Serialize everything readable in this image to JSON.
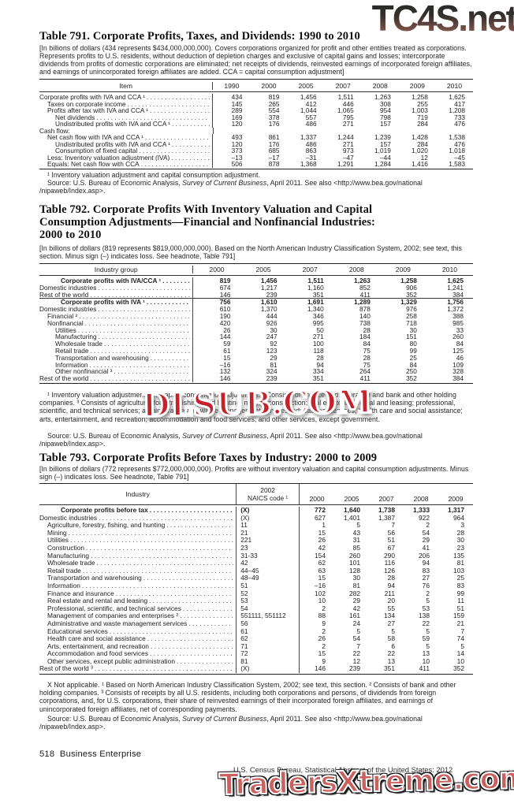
{
  "watermarks": {
    "top": "TC4S.net",
    "middle": "DLSUB.COM",
    "bottom": "TradersXtreme.com"
  },
  "footer": {
    "page_number": "518",
    "section": "Business Enterprise",
    "census_line": "U.S. Census Bureau, Statistical Abstract of the United States: 2012"
  },
  "source_shared": {
    "pre": "Source: U.S. Bureau of Economic Analysis, ",
    "italic": "Survey of Current Business",
    "post": ", April 2011. See also <http://www.bea.gov/national",
    "line2": "/nipaweb/Index.asp>."
  },
  "table791": {
    "title": "Table 791. Corporate Profits, Taxes, and Dividends: 1990 to 2010",
    "headnote": "[In billions of dollars (434 represents $434,000,000,000). Covers corporations organized for profit and other entities treated as corporations. Represents profits to U.S. residents, without deduction of depletion charges and exclusive of capital gains and losses; intercorporate dividends from profits of domestic corporations are eliminated; net receipts of dividends, reinvested earnings of incorporated foreign affiliates, and earnings of unincorporated foreign affiliates are added. CCA = capital consumption adjustment]",
    "col_header": "Item",
    "years": [
      "1990",
      "2000",
      "2005",
      "2007",
      "2008",
      "2009",
      "2010"
    ],
    "rows": [
      {
        "label": "Corporate profits with IVA and CCA ¹",
        "indent": 0,
        "values": [
          "434",
          "819",
          "1,456",
          "1,511",
          "1,263",
          "1,258",
          "1,625"
        ]
      },
      {
        "label": "Taxes on corporate income",
        "indent": 1,
        "values": [
          "145",
          "265",
          "412",
          "446",
          "308",
          "255",
          "417"
        ]
      },
      {
        "label": "Profits after tax with IVA and CCA ¹",
        "indent": 1,
        "values": [
          "289",
          "554",
          "1,044",
          "1,065",
          "954",
          "1,003",
          "1,208"
        ]
      },
      {
        "label": "Net dividends",
        "indent": 2,
        "values": [
          "169",
          "378",
          "557",
          "795",
          "798",
          "719",
          "733"
        ]
      },
      {
        "label": "Undistributed profits with IVA and CCA ¹",
        "indent": 2,
        "values": [
          "120",
          "176",
          "486",
          "271",
          "157",
          "284",
          "476"
        ]
      },
      {
        "label": "Cash flow:",
        "indent": 0,
        "nodots": true,
        "values": []
      },
      {
        "label": "Net cash flow with IVA and CCA ¹",
        "indent": 1,
        "values": [
          "493",
          "861",
          "1,337",
          "1,244",
          "1,239",
          "1,428",
          "1,538"
        ]
      },
      {
        "label": "Undistributed profits with IVA and CCA ¹",
        "indent": 2,
        "values": [
          "120",
          "176",
          "486",
          "271",
          "157",
          "284",
          "476"
        ]
      },
      {
        "label": "Consumption of fixed capital",
        "indent": 2,
        "values": [
          "373",
          "685",
          "863",
          "973",
          "1,019",
          "1,020",
          "1,018"
        ]
      },
      {
        "label": "Less: Inventory valuation adjustment (IVA)",
        "indent": 1,
        "values": [
          "–13",
          "–17",
          "–31",
          "–47",
          "–44",
          "12",
          "–45"
        ]
      },
      {
        "label": "Equals: Net cash flow with CCA",
        "indent": 1,
        "values": [
          "506",
          "878",
          "1,368",
          "1,291",
          "1,284",
          "1,416",
          "1,583"
        ]
      }
    ],
    "footnote": "¹ Inventory valuation adjustment and capital consumption adjustment."
  },
  "table792": {
    "title_line1": "Table 792. Corporate Profits With Inventory Valuation and Capital",
    "title_line2": "Consumption Adjustments—Financial and Nonfinancial Industries:",
    "title_line3": "2000 to 2010",
    "headnote": "[In billions of dollars (819 represents $819,000,000,000). Based on the North American Industry Classification System, 2002; see text, this section. Minus sign (–) indicates loss. See headnote, Table 791]",
    "col_header": "Industry group",
    "years": [
      "2000",
      "2005",
      "2007",
      "2008",
      "2009",
      "2010"
    ],
    "rows": [
      {
        "label": "Corporate profits with IVA/CCA ¹",
        "bold": true,
        "indent": 0,
        "values": [
          "819",
          "1,456",
          "1,511",
          "1,263",
          "1,258",
          "1,625"
        ]
      },
      {
        "label": "Domestic industries",
        "indent": 0,
        "values": [
          "674",
          "1,217",
          "1,160",
          "852",
          "906",
          "1,241"
        ]
      },
      {
        "label": "Rest of the world",
        "indent": 0,
        "values": [
          "146",
          "239",
          "351",
          "411",
          "352",
          "384"
        ]
      },
      {
        "label": "Corporate profits with IVA ¹",
        "bold": true,
        "rule_before": true,
        "indent": 0,
        "values": [
          "756",
          "1,610",
          "1,691",
          "1,289",
          "1,329",
          "1,756"
        ]
      },
      {
        "label": "Domestic industries",
        "indent": 0,
        "values": [
          "610",
          "1,370",
          "1,340",
          "878",
          "976",
          "1,372"
        ]
      },
      {
        "label": "Financial ²",
        "indent": 1,
        "values": [
          "190",
          "444",
          "346",
          "140",
          "258",
          "388"
        ]
      },
      {
        "label": "Nonfinancial",
        "indent": 1,
        "values": [
          "420",
          "926",
          "995",
          "738",
          "718",
          "985"
        ]
      },
      {
        "label": "Utilities",
        "indent": 2,
        "values": [
          "26",
          "30",
          "50",
          "28",
          "30",
          "33"
        ]
      },
      {
        "label": "Manufacturing",
        "indent": 2,
        "values": [
          "144",
          "247",
          "271",
          "184",
          "151",
          "260"
        ]
      },
      {
        "label": "Wholesale trade",
        "indent": 2,
        "values": [
          "59",
          "92",
          "100",
          "84",
          "80",
          "84"
        ]
      },
      {
        "label": "Retail trade",
        "indent": 2,
        "values": [
          "61",
          "123",
          "118",
          "75",
          "99",
          "125"
        ]
      },
      {
        "label": "Transportation and warehousing",
        "indent": 2,
        "values": [
          "15",
          "29",
          "28",
          "28",
          "25",
          "46"
        ]
      },
      {
        "label": "Information",
        "indent": 2,
        "values": [
          "–16",
          "81",
          "94",
          "75",
          "84",
          "109"
        ]
      },
      {
        "label": "Other nonfinancial ³",
        "indent": 2,
        "values": [
          "132",
          "324",
          "334",
          "264",
          "250",
          "328"
        ]
      },
      {
        "label": "Rest of the world",
        "indent": 0,
        "values": [
          "146",
          "239",
          "351",
          "411",
          "352",
          "384"
        ]
      }
    ],
    "footnote": "¹ Inventory valuation adjustment and capital consumption adjustment. ² Consists of finance and insurance and bank and other holding companies. ³ Consists of agriculture, forestry, fishing, and hunting; mining; construction; real estate and rental and leasing; professional, scientific, and technical services; administrative and waste management services; educational services; health care and social assistance; arts, entertainment, and recreation; accommodation and food services; and other services, except government."
  },
  "table793": {
    "title": "Table 793. Corporate Profits Before Taxes by Industry: 2000 to 2009",
    "headnote": "[In billions of dollars (772 represents $772,000,000,000). Profits are without inventory valuation and capital consumption adjustments. Minus sign (–) indicates loss. See headnote, Table 791]",
    "col_header": "Industry",
    "naics_header_line1": "2002",
    "naics_header_line2": "NAICS code ¹",
    "years": [
      "2000",
      "2005",
      "2007",
      "2008",
      "2009"
    ],
    "rows": [
      {
        "label": "Corporate profits before tax",
        "bold": true,
        "indent": 0,
        "naics": "(X)",
        "values": [
          "772",
          "1,640",
          "1,738",
          "1,333",
          "1,317"
        ]
      },
      {
        "label": "Domestic industries",
        "indent": 0,
        "naics": "(X)",
        "values": [
          "627",
          "1,401",
          "1,387",
          "922",
          "964"
        ]
      },
      {
        "label": "Agriculture, forestry, fishing, and hunting",
        "indent": 1,
        "naics": "11",
        "values": [
          "1",
          "5",
          "7",
          "2",
          "3"
        ]
      },
      {
        "label": "Mining",
        "indent": 1,
        "naics": "21",
        "values": [
          "15",
          "43",
          "56",
          "54",
          "28"
        ]
      },
      {
        "label": "Utilities",
        "indent": 1,
        "naics": "221",
        "values": [
          "26",
          "31",
          "51",
          "29",
          "30"
        ]
      },
      {
        "label": "Construction",
        "indent": 1,
        "naics": "23",
        "values": [
          "42",
          "85",
          "67",
          "41",
          "23"
        ]
      },
      {
        "label": "Manufacturing",
        "indent": 1,
        "naics": "31-33",
        "values": [
          "154",
          "260",
          "290",
          "206",
          "135"
        ]
      },
      {
        "label": "Wholesale trade",
        "indent": 1,
        "naics": "42",
        "values": [
          "62",
          "101",
          "116",
          "94",
          "81"
        ]
      },
      {
        "label": "Retail trade",
        "indent": 1,
        "naics": "44–45",
        "values": [
          "63",
          "128",
          "126",
          "83",
          "103"
        ]
      },
      {
        "label": "Transportation and warehousing",
        "indent": 1,
        "naics": "48–49",
        "values": [
          "15",
          "30",
          "28",
          "27",
          "25"
        ]
      },
      {
        "label": "Information",
        "indent": 1,
        "naics": "51",
        "values": [
          "–16",
          "81",
          "94",
          "76",
          "83"
        ]
      },
      {
        "label": "Finance and insurance",
        "indent": 1,
        "naics": "52",
        "values": [
          "102",
          "282",
          "211",
          "2",
          "99"
        ]
      },
      {
        "label": "Real estate and rental and leasing",
        "indent": 1,
        "naics": "53",
        "values": [
          "10",
          "29",
          "20",
          "5",
          "11"
        ]
      },
      {
        "label": "Professional, scientific, and technical services",
        "indent": 1,
        "naics": "54",
        "values": [
          "2",
          "42",
          "55",
          "53",
          "51"
        ]
      },
      {
        "label": "Management of companies and enterprises ²",
        "indent": 1,
        "naics": "551111, 551112",
        "values": [
          "88",
          "161",
          "134",
          "138",
          "159"
        ]
      },
      {
        "label": "Administrative and waste management services",
        "indent": 1,
        "naics": "56",
        "values": [
          "9",
          "24",
          "27",
          "22",
          "21"
        ]
      },
      {
        "label": "Educational services",
        "indent": 1,
        "naics": "61",
        "values": [
          "2",
          "5",
          "5",
          "5",
          "7"
        ]
      },
      {
        "label": "Health care and social assistance",
        "indent": 1,
        "naics": "62",
        "values": [
          "26",
          "54",
          "58",
          "59",
          "74"
        ]
      },
      {
        "label": "Arts, entertainment, and recreation",
        "indent": 1,
        "naics": "71",
        "values": [
          "2",
          "7",
          "6",
          "5",
          "5"
        ]
      },
      {
        "label": "Accommodation and food services",
        "indent": 1,
        "naics": "72",
        "values": [
          "15",
          "22",
          "22",
          "13",
          "14"
        ]
      },
      {
        "label": "Other services, except public administration",
        "indent": 1,
        "naics": "81",
        "values": [
          "9",
          "12",
          "13",
          "10",
          "10"
        ]
      },
      {
        "label": "Rest of the world ³",
        "indent": 0,
        "naics": "(X)",
        "values": [
          "146",
          "239",
          "351",
          "411",
          "352"
        ]
      }
    ],
    "footnote": "X Not applicable. ¹ Based on North American Industry Classification System, 2002; see text, this section. ² Consists of bank and other holding companies. ³ Consists of receipts by all U.S. residents, including both corporations and  persons, of dividends from foreign corporations, and, for U.S. corporations, their share of reinvested earnings of their incorporated foreign affiliates, and earnings of unincorporated foreign affiliates, net of corresponding payments."
  }
}
